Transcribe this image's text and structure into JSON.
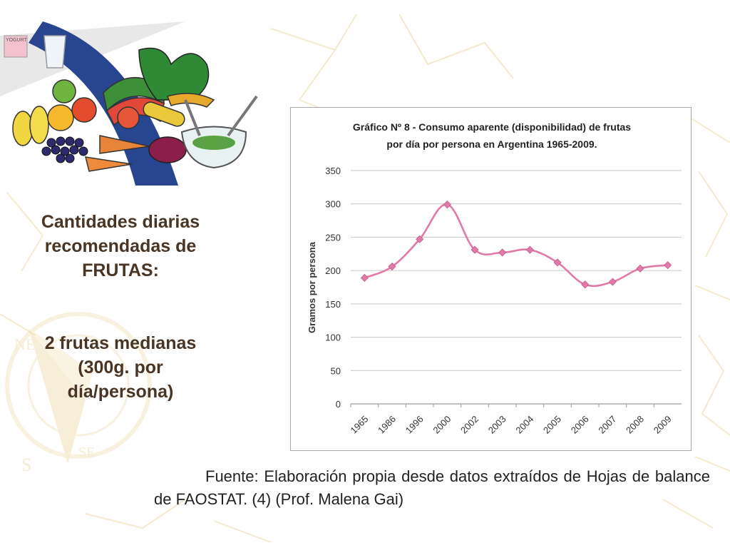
{
  "slide": {
    "side_title": "Cantidades diarias recomendadas de FRUTAS:",
    "side_note": "2 frutas medianas (300g. por día/persona)",
    "source": "Fuente: Elaboración propia desde datos extraídos de Hojas de balance de FAOSTAT. (4) (Prof. Malena Gai)",
    "illustration": {
      "items": [
        "yogurt-icon",
        "glass-icon",
        "fruits-icon",
        "vegetables-icon",
        "salad-bowl-icon"
      ],
      "yogurt_label": "YOGURT"
    }
  },
  "chart_data": {
    "type": "line",
    "title": [
      "Gráfico Nº 8 - Consumo aparente (disponibilidad)  de frutas",
      "por día por persona en Argentina 1965-2009."
    ],
    "xlabel": "",
    "ylabel": "Gramos por persona",
    "categories": [
      "1965",
      "1986",
      "1996",
      "2000",
      "2002",
      "2003",
      "2004",
      "2005",
      "2006",
      "2007",
      "2008",
      "2009"
    ],
    "series": [
      {
        "values": [
          189,
          206,
          247,
          299,
          231,
          227,
          231,
          212,
          179,
          183,
          203,
          208
        ],
        "color": "#e07aa8",
        "marker": "diamond"
      }
    ],
    "ylim": [
      0,
      350
    ],
    "yticks": [
      0,
      50,
      100,
      150,
      200,
      250,
      300,
      350
    ],
    "grid": true,
    "smooth": true
  }
}
